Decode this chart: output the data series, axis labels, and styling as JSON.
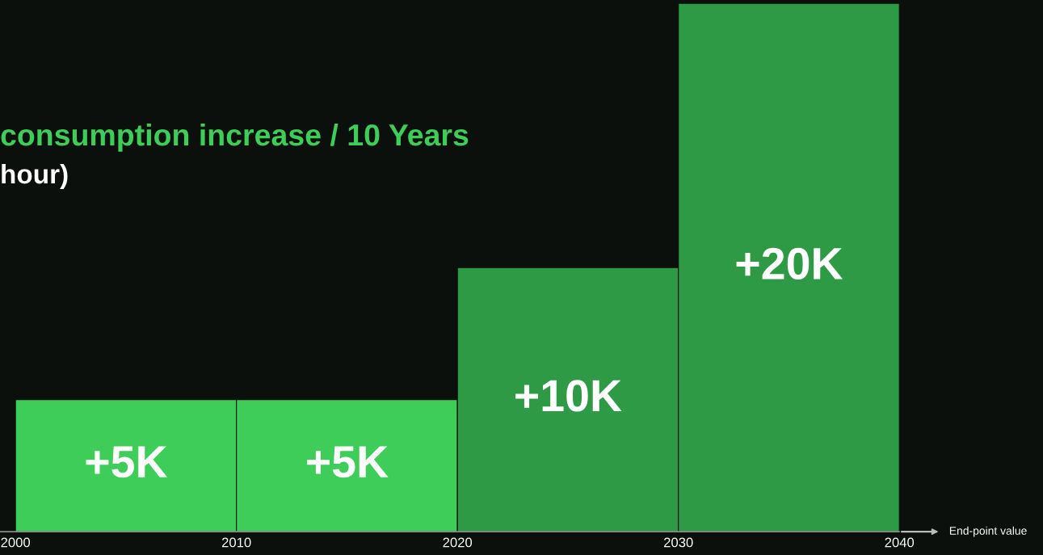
{
  "chart_data": {
    "type": "bar",
    "title": "consumption increase / 10 Years",
    "subtitle": "hour)",
    "x": [
      2005,
      2015,
      2025,
      2035
    ],
    "values": [
      5,
      5,
      10,
      20
    ],
    "value_labels": [
      "+5K",
      "+5K",
      "+10K",
      "+20K"
    ],
    "colors": [
      "#3dcd58",
      "#3dcd58",
      "#2e9a45",
      "#2e9a45"
    ],
    "xlim": [
      1999.3,
      2046.5
    ],
    "xticks": [
      2000,
      2010,
      2020,
      2030,
      2040
    ],
    "annotations": [
      "End-point value"
    ],
    "tick_labels": "x",
    "grid": false,
    "legend": false
  }
}
